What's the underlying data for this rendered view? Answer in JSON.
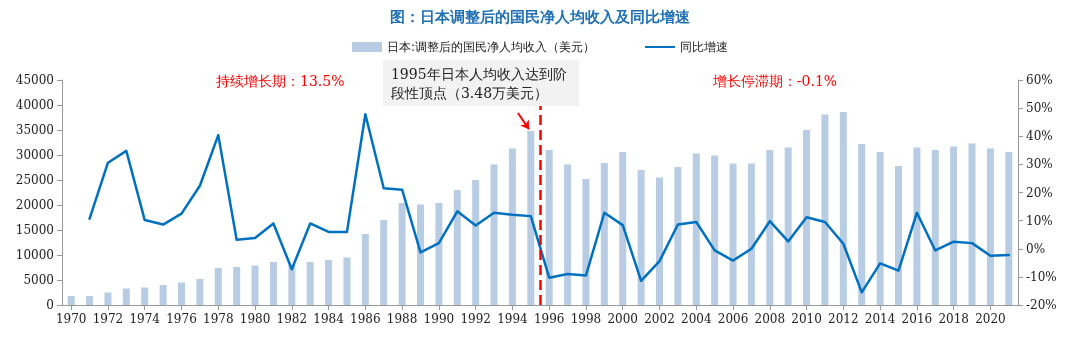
{
  "chart_data": {
    "type": "bar",
    "title": "图：日本调整后的国民净人均收入及同比增速",
    "x": [
      1970,
      1971,
      1972,
      1973,
      1974,
      1975,
      1976,
      1977,
      1978,
      1979,
      1980,
      1981,
      1982,
      1983,
      1984,
      1985,
      1986,
      1987,
      1988,
      1989,
      1990,
      1991,
      1992,
      1993,
      1994,
      1995,
      1996,
      1997,
      1998,
      1999,
      2000,
      2001,
      2002,
      2003,
      2004,
      2005,
      2006,
      2007,
      2008,
      2009,
      2010,
      2011,
      2012,
      2013,
      2014,
      2015,
      2016,
      2017,
      2018,
      2019,
      2020,
      2021
    ],
    "xlim": [
      1969.5,
      2021.5
    ],
    "xticks": [
      1970,
      1972,
      1974,
      1976,
      1978,
      1980,
      1982,
      1984,
      1986,
      1988,
      1990,
      1992,
      1994,
      1996,
      1998,
      2000,
      2002,
      2004,
      2006,
      2008,
      2010,
      2012,
      2014,
      2016,
      2018,
      2020
    ],
    "series": [
      {
        "name": "日本:调整后的国民净人均收入（美元）",
        "color": "#b8cce4",
        "values": [
          1800,
          1800,
          2500,
          3300,
          3500,
          4000,
          4500,
          5200,
          7400,
          7600,
          7900,
          8600,
          8000,
          8600,
          9000,
          9500,
          14200,
          17000,
          20400,
          20100,
          20400,
          23000,
          25000,
          28100,
          31300,
          34800,
          31000,
          28100,
          25200,
          28400,
          30600,
          27000,
          25500,
          27600,
          30300,
          29900,
          28300,
          28300,
          31000,
          31500,
          35000,
          38100,
          38600,
          32200,
          30600,
          27800,
          31500,
          31000,
          31700,
          32300,
          31300,
          30600
        ]
      },
      {
        "name": "同比增速",
        "type": "line",
        "axis": "y2",
        "color": "#0070c0",
        "values": [
          null,
          10.7,
          30.6,
          34.8,
          10.2,
          8.6,
          12.5,
          22.4,
          40.4,
          3.2,
          3.8,
          9.0,
          -7.3,
          9.0,
          6.0,
          6.0,
          47.8,
          21.5,
          21.0,
          -1.3,
          2.0,
          13.3,
          8.3,
          12.8,
          12.1,
          11.6,
          -10.3,
          -9.0,
          -9.5,
          12.8,
          8.4,
          -11.4,
          -4.4,
          8.6,
          9.5,
          -0.6,
          -4.2,
          0.0,
          9.8,
          2.6,
          11.2,
          9.5,
          1.8,
          -15.5,
          -5.2,
          -7.8,
          12.8,
          -0.6,
          2.5,
          2.0,
          -2.5,
          -2.2
        ]
      }
    ],
    "ylim": [
      0,
      45000
    ],
    "yticks": [
      0,
      5000,
      10000,
      15000,
      20000,
      25000,
      30000,
      35000,
      40000,
      45000
    ],
    "y2lim": [
      -20,
      60
    ],
    "y2ticks": [
      {
        "value": -20,
        "label": "-20%"
      },
      {
        "value": -10,
        "label": "-10%"
      },
      {
        "value": 0,
        "label": "0%"
      },
      {
        "value": 10,
        "label": "10%"
      },
      {
        "value": 20,
        "label": "20%"
      },
      {
        "value": 30,
        "label": "30%"
      },
      {
        "value": 40,
        "label": "40%"
      },
      {
        "value": 50,
        "label": "50%"
      },
      {
        "value": 60,
        "label": "60%"
      }
    ],
    "ref_lines": [
      {
        "axis": "x",
        "value": 1995.5,
        "color": "#ff0000",
        "line_style": "dashed"
      }
    ],
    "annotations": [
      "持续增长期：13.5%",
      "增长停滞期：-0.1%",
      {
        "text": "1995年日本人均收入达到阶段性顶点（3.48万美元）",
        "x": 1995,
        "y": 34800
      }
    ],
    "legend": "top",
    "grid": false,
    "marker": "none",
    "line_style": "solid"
  }
}
